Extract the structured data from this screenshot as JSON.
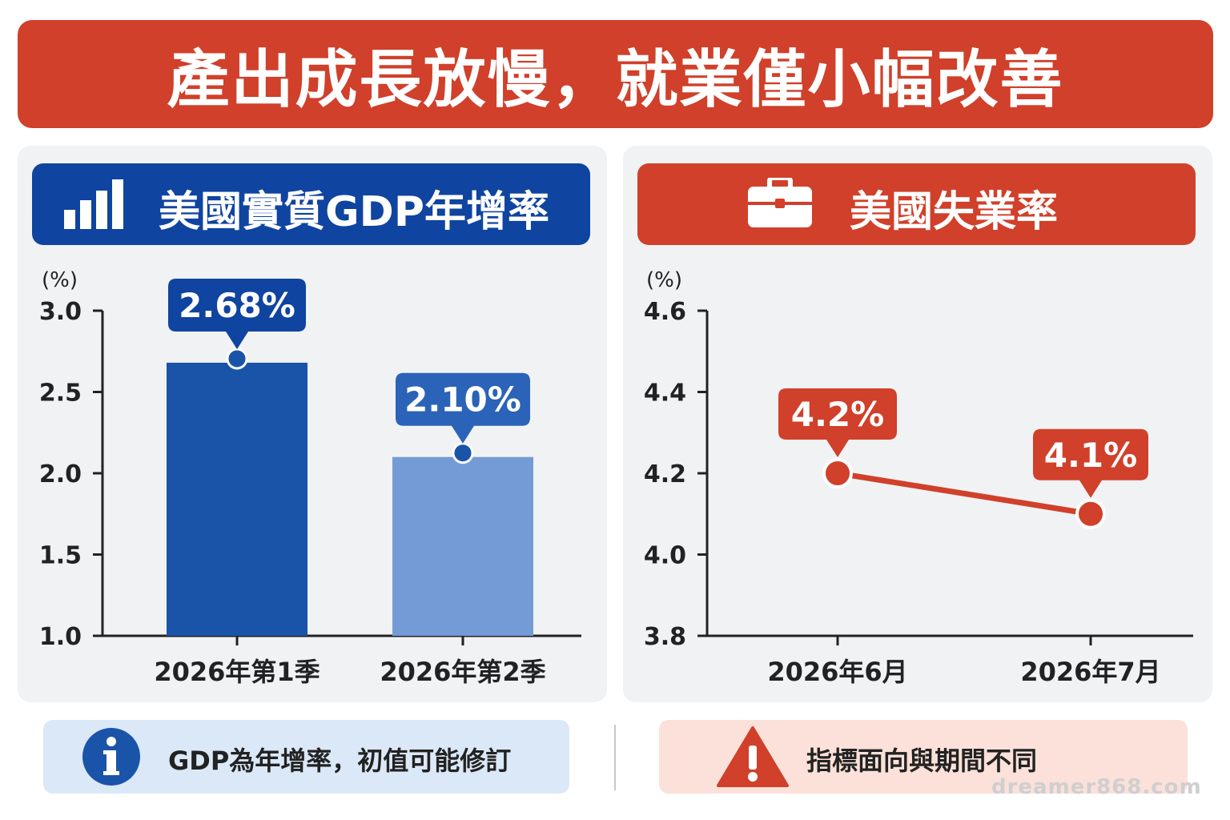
{
  "banner": {
    "title": "產出成長放慢，就業僅小幅改善"
  },
  "gdp_panel": {
    "title": "美國實質GDP年增率",
    "icon": "bar-chart-icon"
  },
  "unemployment_panel": {
    "title": "美國失業率",
    "icon": "briefcase-icon"
  },
  "notes": {
    "gdp": {
      "text": "GDP為年增率，初值可能修訂",
      "icon": "info-icon"
    },
    "unemployment": {
      "text": "指標面向與期間不同",
      "icon": "warning-icon"
    }
  },
  "watermark": "dreamer868.com",
  "colors": {
    "red": "#d0402a",
    "blue_dark": "#1a54a8",
    "blue_light": "#749bd6",
    "header_blue": "#0f44a0"
  },
  "chart_data": [
    {
      "type": "bar",
      "unit_label": "(%)",
      "categories": [
        "2026年第1季",
        "2026年第2季"
      ],
      "values": [
        2.68,
        2.1
      ],
      "value_labels": [
        "2.68%",
        "2.10%"
      ],
      "ylim": [
        1.0,
        3.0
      ],
      "yticks": [
        "1.0",
        "1.5",
        "2.0",
        "2.5",
        "3.0"
      ],
      "ytick_values": [
        1.0,
        1.5,
        2.0,
        2.5,
        3.0
      ],
      "grid": false
    },
    {
      "type": "line",
      "unit_label": "(%)",
      "categories": [
        "2026年6月",
        "2026年7月"
      ],
      "values": [
        4.2,
        4.1
      ],
      "value_labels": [
        "4.2%",
        "4.1%"
      ],
      "ylim": [
        3.8,
        4.6
      ],
      "yticks": [
        "3.8",
        "4.0",
        "4.2",
        "4.4",
        "4.6"
      ],
      "ytick_values": [
        3.8,
        4.0,
        4.2,
        4.4,
        4.6
      ],
      "grid": false
    }
  ]
}
